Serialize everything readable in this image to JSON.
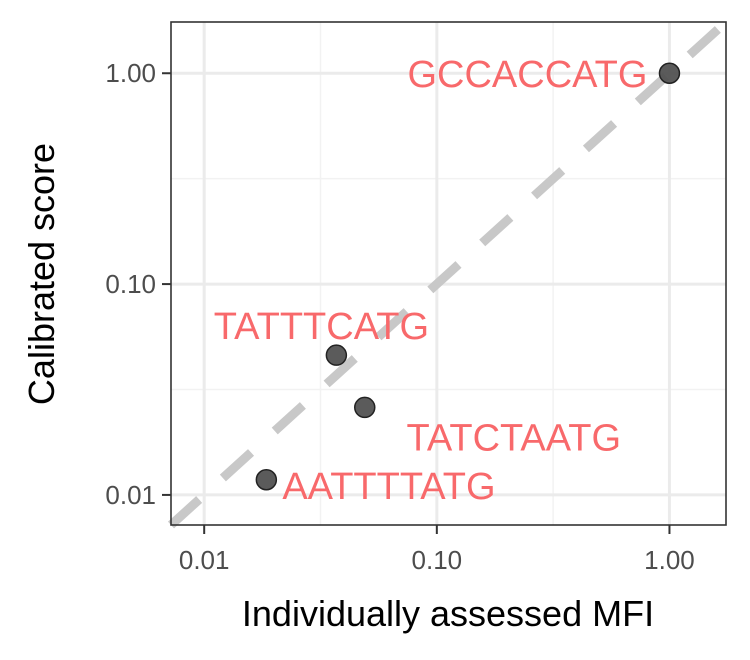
{
  "chart_data": {
    "type": "scatter",
    "xlabel": "Individually assessed MFI",
    "ylabel": "Calibrated score",
    "x_scale": "log10",
    "y_scale": "log10",
    "xlim": [
      0.0072,
      1.75
    ],
    "ylim": [
      0.0072,
      1.75
    ],
    "x_ticks": [
      {
        "value": 0.01,
        "label": "0.01"
      },
      {
        "value": 0.1,
        "label": "0.10"
      },
      {
        "value": 1,
        "label": "1.00"
      }
    ],
    "y_ticks": [
      {
        "value": 0.01,
        "label": "0.01"
      },
      {
        "value": 0.1,
        "label": "0.10"
      },
      {
        "value": 1,
        "label": "1.00"
      }
    ],
    "grid": true,
    "reference_line": {
      "type": "identity",
      "style": "dashed",
      "color": "#c8c8c8"
    },
    "point_color": "#4d4d4d",
    "label_color": "#f8696b",
    "points": [
      {
        "label": "GCCACCATG",
        "x": 1.0,
        "y": 1.0,
        "label_position": "left"
      },
      {
        "label": "TATTTCATG",
        "x": 0.037,
        "y": 0.046,
        "label_position": "above"
      },
      {
        "label": "TATCTAATG",
        "x": 0.049,
        "y": 0.026,
        "label_position": "below-right"
      },
      {
        "label": "AATTTTATG",
        "x": 0.0185,
        "y": 0.0118,
        "label_position": "right"
      }
    ]
  }
}
